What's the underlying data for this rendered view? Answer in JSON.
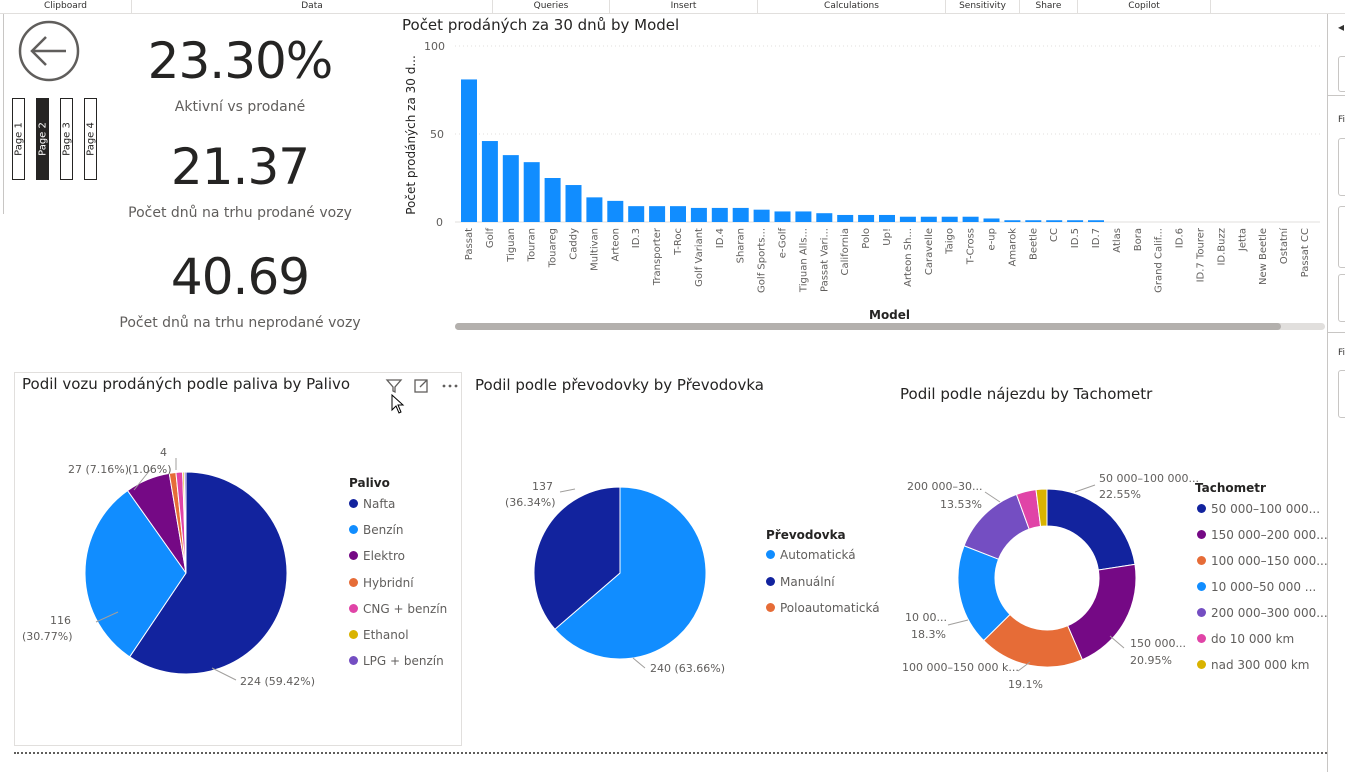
{
  "ribbon": {
    "groups": [
      "Clipboard",
      "Data",
      "Queries",
      "Insert",
      "Calculations",
      "Sensitivity",
      "Share",
      "Copilot"
    ]
  },
  "nav": {
    "pages": [
      "Page 1",
      "Page 2",
      "Page 3",
      "Page 4"
    ],
    "active_page": "Page 2"
  },
  "cards": [
    {
      "value": "23.30%",
      "label": "Aktivní vs prodané"
    },
    {
      "value": "21.37",
      "label": "Počet dnů na trhu prodané vozy"
    },
    {
      "value": "40.69",
      "label": "Počet dnů na trhu neprodané vozy"
    }
  ],
  "bar_chart": {
    "title": "Počet prodáných za 30 dnů by Model",
    "ylabel": "Počet prodáných za 30 d...",
    "xlabel": "Model",
    "yticks": [
      "100",
      "50",
      "0"
    ]
  },
  "pie_fuel": {
    "title": "Podil vozu prodáných podle paliva by Palivo",
    "legend_title": "Palivo",
    "labels": {
      "nafta": "224 (59.42%)",
      "benzin_count": "116",
      "benzin_pct": "(30.77%)",
      "elektro": "27 (7.16%)",
      "hybrid": "(1.06%)",
      "top": "4"
    }
  },
  "pie_gear": {
    "title": "Podil podle převodovky by Převodovka",
    "legend_title": "Převodovka",
    "labels": {
      "auto": "240 (63.66%)",
      "manual_count": "137",
      "manual_pct": "(36.34%)"
    }
  },
  "donut_km": {
    "title": "Podil podle nájezdu by Tachometr",
    "legend_title": "Tachometr",
    "labels": {
      "a_name": "50 000–100 000...",
      "a_pct": "22.55%",
      "b_name": "150 000...",
      "b_pct": "20.95%",
      "c_name": "100 000–150 000 k...",
      "c_pct": "19.1%",
      "d_name": "10 00...",
      "d_pct": "18.3%",
      "e_name": "200 000–30...",
      "e_pct": "13.53%"
    }
  },
  "right_pane": {
    "labels": [
      "Fi",
      "Fi"
    ]
  },
  "colors": {
    "dark_blue": "#12239E",
    "blue": "#118DFF",
    "purple": "#750985",
    "orange": "#E66C37",
    "pink": "#E044A7",
    "yellow": "#D9B300",
    "violet": "#6B007B",
    "lavender": "#744EC2"
  },
  "chart_data": [
    {
      "type": "bar",
      "title": "Počet prodáných za 30 dnů by Model",
      "xlabel": "Model",
      "ylabel": "Počet prodáných za 30 d...",
      "ylim": [
        0,
        100
      ],
      "categories": [
        "Passat",
        "Golf",
        "Tiguan",
        "Touran",
        "Touareg",
        "Caddy",
        "Multivan",
        "Arteon",
        "ID.3",
        "Transporter",
        "T-Roc",
        "Golf Variant",
        "ID.4",
        "Sharan",
        "Golf Sports...",
        "e-Golf",
        "Tiguan Alls...",
        "Passat Vari...",
        "California",
        "Polo",
        "Up!",
        "Arteon Sh...",
        "Caravelle",
        "Taigo",
        "T-Cross",
        "e-up",
        "Amarok",
        "Beetle",
        "CC",
        "ID.5",
        "ID.7",
        "Atlas",
        "Bora",
        "Grand Calif...",
        "ID.6",
        "ID.7 Tourer",
        "ID.Buzz",
        "Jetta",
        "New Beetle",
        "Ostatní",
        "Passat CC"
      ],
      "values": [
        81,
        46,
        38,
        34,
        25,
        21,
        14,
        12,
        9,
        9,
        9,
        8,
        8,
        8,
        7,
        6,
        6,
        5,
        4,
        4,
        4,
        3,
        3,
        3,
        3,
        2,
        1,
        1,
        1,
        1,
        1,
        0,
        0,
        0,
        0,
        0,
        0,
        0,
        0,
        0,
        0
      ]
    },
    {
      "type": "pie",
      "title": "Podil vozu prodáných podle paliva by Palivo",
      "categories": [
        "Nafta",
        "Benzín",
        "Elektro",
        "Hybridní",
        "CNG + benzín",
        "Ethanol",
        "LPG + benzín"
      ],
      "values": [
        224,
        116,
        27,
        4,
        4,
        1,
        1
      ],
      "colors": [
        "#12239E",
        "#118DFF",
        "#750985",
        "#E66C37",
        "#E044A7",
        "#D9B300",
        "#744EC2"
      ]
    },
    {
      "type": "pie",
      "title": "Podil podle převodovky by Převodovka",
      "categories": [
        "Automatická",
        "Manuální",
        "Poloautomatická"
      ],
      "values": [
        240,
        137,
        0
      ],
      "colors": [
        "#118DFF",
        "#12239E",
        "#E66C37"
      ]
    },
    {
      "type": "pie",
      "title": "Podil podle nájezdu by Tachometr",
      "categories": [
        "50 000–100 000...",
        "150 000–200 000...",
        "100 000–150 000...",
        "10 000–50 000 ...",
        "200 000–300 000...",
        "do 10 000 km",
        "nad 300 000 km"
      ],
      "values": [
        22.55,
        20.95,
        19.1,
        18.3,
        13.53,
        3.6,
        1.97
      ],
      "colors": [
        "#12239E",
        "#750985",
        "#E66C37",
        "#118DFF",
        "#744EC2",
        "#E044A7",
        "#D9B300"
      ]
    }
  ]
}
